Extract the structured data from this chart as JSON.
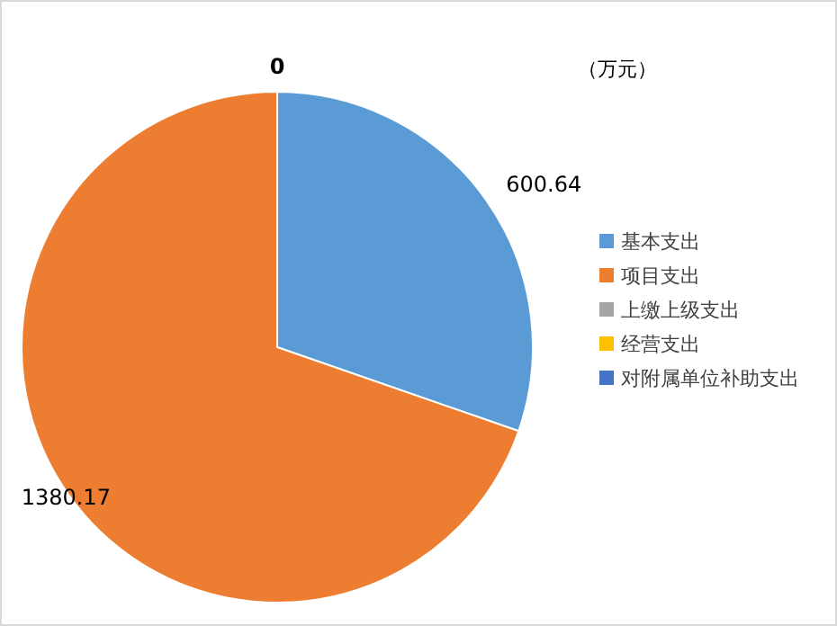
{
  "chart_data": {
    "type": "pie",
    "categories": [
      "基本支出",
      "项目支出",
      "上缴上级支出",
      "经营支出",
      "对附属单位补助支出"
    ],
    "values": [
      600.64,
      1380.17,
      0,
      0,
      0
    ],
    "value_labels": [
      "600.64",
      "1380.17",
      "0",
      null,
      null
    ],
    "colors": [
      "#5b9bd5",
      "#ed7d31",
      "#a5a5a5",
      "#ffc000",
      "#4472c4"
    ],
    "annotations": [
      "（万元）"
    ],
    "legend": "right"
  }
}
